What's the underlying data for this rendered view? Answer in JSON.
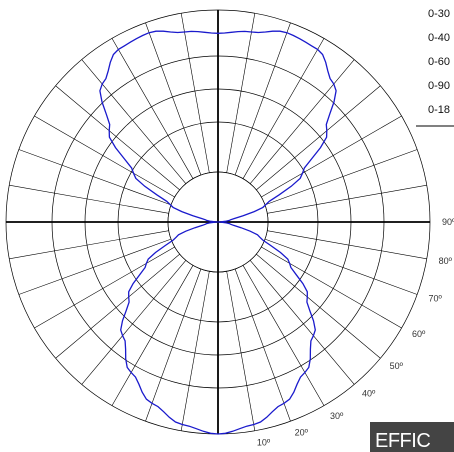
{
  "chart_data": {
    "type": "polar-line",
    "title": "",
    "angle_unit": "deg",
    "angle_labels": [
      "90º",
      "80º",
      "70º",
      "60º",
      "50º",
      "40º",
      "30º",
      "20º",
      "10º"
    ],
    "legend_rows": [
      "0-30",
      "0-40",
      "0-60",
      "0-90",
      "0-18"
    ],
    "grid": true,
    "series": [
      {
        "color": "#1a1acc",
        "angles": [
          0,
          10,
          20,
          30,
          40,
          50,
          60,
          70,
          80,
          90,
          100,
          110,
          120,
          130,
          140,
          150,
          160,
          170,
          180
        ],
        "values": [
          1.0,
          0.97,
          0.91,
          0.82,
          0.7,
          0.55,
          0.39,
          0.21,
          0.06,
          0.0,
          0.06,
          0.24,
          0.46,
          0.67,
          0.85,
          0.94,
          0.95,
          0.91,
          0.89
        ]
      }
    ]
  },
  "badge": {
    "text": "EFFIC"
  }
}
